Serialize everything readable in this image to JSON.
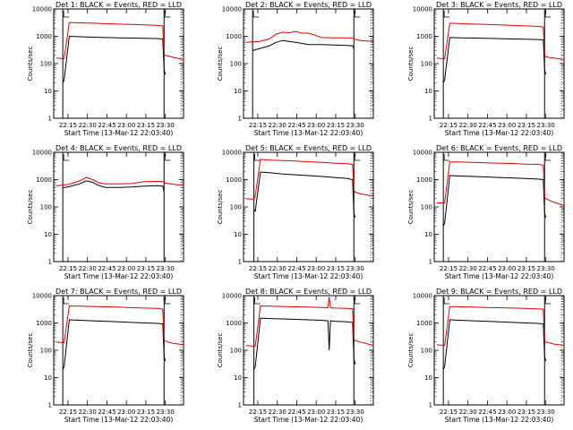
{
  "colors": {
    "events": "#000000",
    "lld": "#e00000",
    "axes": "#000000"
  },
  "common": {
    "xlabel": "Start Time (13-Mar-12 22:03:40)",
    "ylabel": "Counts/sec",
    "yscale": "log",
    "ylim": [
      1,
      10000
    ],
    "xlim_minutes": [
      0,
      100
    ],
    "xtick_labels": [
      "22:15",
      "22:30",
      "22:45",
      "23:00",
      "23:15",
      "23:30"
    ],
    "ytick_labels": [
      "1",
      "10",
      "100",
      "1000",
      "10000"
    ]
  },
  "chart_data": [
    {
      "type": "line",
      "title": "Det 1: BLACK = Events, RED = LLD",
      "x_minutes": [
        2,
        7,
        8,
        12,
        20,
        30,
        40,
        50,
        60,
        70,
        80,
        84,
        85,
        86,
        88,
        92,
        100
      ],
      "series": [
        {
          "values": [
            null,
            20,
            25,
            1000,
            960,
            930,
            900,
            880,
            860,
            840,
            820,
            800,
            60,
            40,
            null,
            null,
            null
          ]
        },
        {
          "values": [
            160,
            150,
            150,
            3200,
            3100,
            3000,
            2900,
            2800,
            2700,
            2600,
            2500,
            2400,
            220,
            200,
            190,
            170,
            140
          ]
        }
      ]
    },
    {
      "type": "line",
      "title": "Det 2: BLACK = Events, RED = LLD",
      "x_minutes": [
        2,
        7,
        12,
        20,
        25,
        30,
        35,
        40,
        45,
        50,
        55,
        60,
        70,
        80,
        84,
        85,
        90,
        100
      ],
      "series": [
        {
          "values": [
            null,
            300,
            350,
            450,
            600,
            700,
            650,
            600,
            550,
            500,
            500,
            500,
            480,
            460,
            450,
            350,
            null,
            null
          ]
        },
        {
          "values": [
            600,
            620,
            640,
            800,
            1200,
            1400,
            1350,
            1500,
            1300,
            1300,
            1100,
            900,
            880,
            870,
            860,
            800,
            700,
            650
          ]
        }
      ]
    },
    {
      "type": "line",
      "title": "Det 3: BLACK = Events, RED = LLD",
      "x_minutes": [
        2,
        7,
        8,
        12,
        20,
        30,
        40,
        50,
        60,
        70,
        80,
        84,
        85,
        86,
        88,
        92,
        100
      ],
      "series": [
        {
          "values": [
            null,
            20,
            25,
            900,
            880,
            860,
            840,
            820,
            800,
            780,
            760,
            740,
            60,
            40,
            null,
            null,
            null
          ]
        },
        {
          "values": [
            160,
            150,
            150,
            3000,
            2900,
            2800,
            2700,
            2600,
            2500,
            2400,
            2300,
            2200,
            200,
            180,
            170,
            160,
            140
          ]
        }
      ]
    },
    {
      "type": "line",
      "title": "Det 4: BLACK = Events, RED = LLD",
      "x_minutes": [
        2,
        7,
        12,
        20,
        25,
        30,
        35,
        40,
        50,
        60,
        70,
        80,
        84,
        85,
        90,
        100
      ],
      "series": [
        {
          "values": [
            null,
            500,
            550,
            700,
            900,
            800,
            600,
            520,
            520,
            540,
            580,
            600,
            580,
            350,
            null,
            null
          ]
        },
        {
          "values": [
            600,
            620,
            680,
            900,
            1200,
            1000,
            750,
            700,
            700,
            720,
            850,
            860,
            840,
            760,
            700,
            600
          ]
        }
      ]
    },
    {
      "type": "line",
      "title": "Det 5: BLACK = Events, RED = LLD",
      "x_minutes": [
        2,
        8,
        9,
        13,
        20,
        30,
        40,
        50,
        60,
        70,
        80,
        84,
        85,
        86,
        90,
        100
      ],
      "series": [
        {
          "values": [
            null,
            80,
            70,
            1900,
            1800,
            1600,
            1500,
            1400,
            1300,
            1200,
            1100,
            1000,
            60,
            40,
            null,
            null
          ]
        },
        {
          "values": [
            200,
            190,
            250,
            5500,
            5200,
            5000,
            4800,
            4500,
            4300,
            4000,
            3800,
            3600,
            400,
            350,
            300,
            250
          ]
        }
      ]
    },
    {
      "type": "line",
      "title": "Det 6: BLACK = Events, RED = LLD",
      "x_minutes": [
        2,
        7,
        8,
        12,
        20,
        30,
        40,
        50,
        60,
        70,
        80,
        84,
        85,
        86,
        88,
        92,
        100
      ],
      "series": [
        {
          "values": [
            null,
            20,
            25,
            1400,
            1350,
            1300,
            1250,
            1200,
            1150,
            1100,
            1050,
            1000,
            60,
            40,
            null,
            null,
            null
          ]
        },
        {
          "values": [
            140,
            140,
            140,
            4500,
            4400,
            4300,
            4100,
            4000,
            3900,
            3700,
            3600,
            3400,
            220,
            200,
            180,
            150,
            110
          ]
        }
      ]
    },
    {
      "type": "line",
      "title": "Det 7: BLACK = Events, RED = LLD",
      "x_minutes": [
        2,
        7,
        8,
        12,
        20,
        30,
        40,
        50,
        60,
        70,
        80,
        84,
        85,
        86,
        88,
        92,
        100
      ],
      "series": [
        {
          "values": [
            null,
            20,
            25,
            1300,
            1250,
            1200,
            1150,
            1100,
            1050,
            1000,
            960,
            920,
            60,
            40,
            null,
            null,
            null
          ]
        },
        {
          "values": [
            200,
            190,
            190,
            4200,
            4100,
            4000,
            3900,
            3800,
            3600,
            3500,
            3400,
            3200,
            240,
            220,
            200,
            180,
            160
          ]
        }
      ]
    },
    {
      "type": "line",
      "title": "Det 8: BLACK = Events, RED = LLD",
      "x_minutes": [
        2,
        8,
        9,
        13,
        20,
        30,
        40,
        50,
        60,
        65,
        66,
        67,
        70,
        80,
        84,
        85,
        86,
        90,
        100
      ],
      "series": [
        {
          "values": [
            null,
            20,
            25,
            1500,
            1450,
            1400,
            1350,
            1300,
            1250,
            1200,
            100,
            1200,
            1150,
            1100,
            1050,
            50,
            30,
            null,
            null
          ]
        },
        {
          "values": [
            150,
            140,
            140,
            4200,
            4100,
            4000,
            3900,
            3800,
            3700,
            3600,
            9000,
            3600,
            3500,
            3400,
            3300,
            250,
            230,
            200,
            150
          ]
        }
      ]
    },
    {
      "type": "line",
      "title": "Det 9: BLACK = Events, RED = LLD",
      "x_minutes": [
        2,
        7,
        8,
        12,
        20,
        30,
        40,
        50,
        60,
        70,
        80,
        84,
        85,
        86,
        88,
        92,
        100
      ],
      "series": [
        {
          "values": [
            null,
            20,
            25,
            1300,
            1250,
            1200,
            1150,
            1100,
            1050,
            1000,
            960,
            920,
            60,
            40,
            null,
            null,
            null
          ]
        },
        {
          "values": [
            160,
            150,
            150,
            4000,
            3900,
            3800,
            3700,
            3600,
            3500,
            3400,
            3300,
            3200,
            220,
            200,
            190,
            170,
            150
          ]
        }
      ]
    }
  ],
  "chart_marks": [
    {
      "at_minutes": [
        7,
        85
      ]
    },
    {
      "at_minutes": [
        7,
        85
      ]
    },
    {
      "at_minutes": [
        7,
        85
      ]
    },
    {
      "at_minutes": [
        7,
        85
      ]
    },
    {
      "at_minutes": [
        8,
        85
      ]
    },
    {
      "at_minutes": [
        7,
        85
      ]
    },
    {
      "at_minutes": [
        7,
        85
      ]
    },
    {
      "at_minutes": [
        8,
        85
      ]
    },
    {
      "at_minutes": [
        7,
        85
      ]
    }
  ]
}
